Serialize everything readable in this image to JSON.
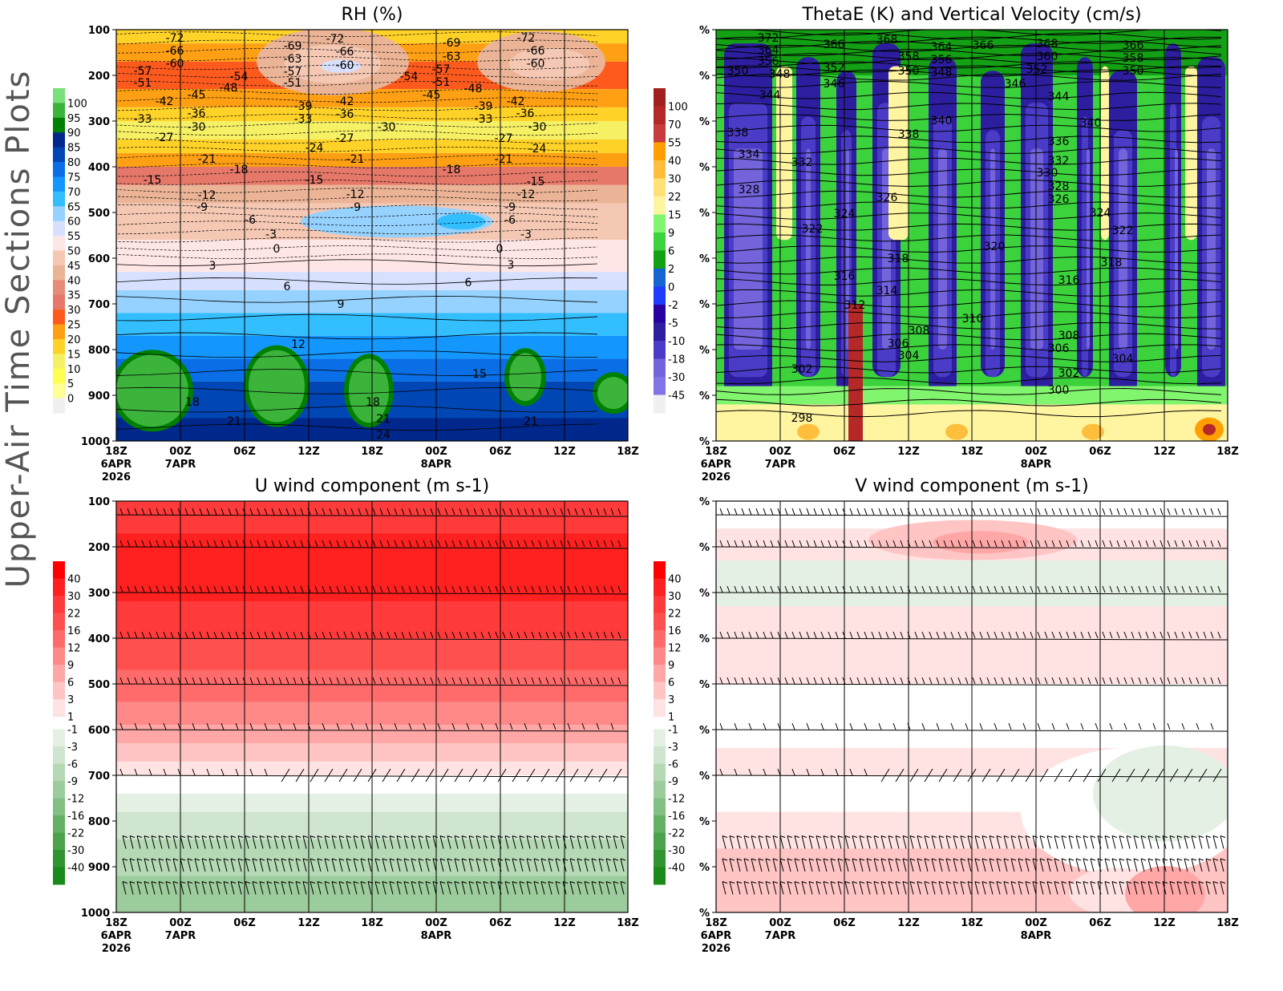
{
  "figure_title": "Upper-Air Time Sections Plots",
  "chart_data": [
    {
      "type": "heatmap",
      "title": "RH (%)",
      "y_ticks": [
        "100",
        "200",
        "300",
        "400",
        "500",
        "600",
        "700",
        "800",
        "900",
        "1000"
      ],
      "x_ticks": [
        "18Z",
        "00Z",
        "06Z",
        "12Z",
        "18Z",
        "00Z",
        "06Z",
        "12Z",
        "18Z"
      ],
      "x_date_labels": {
        "d0": "6APR",
        "d1": "7APR",
        "d2": "8APR",
        "year": "2026"
      },
      "colorbar_labels": [
        "100",
        "95",
        "90",
        "85",
        "80",
        "75",
        "70",
        "65",
        "60",
        "55",
        "50",
        "45",
        "40",
        "35",
        "30",
        "25",
        "20",
        "15",
        "10",
        "5",
        "0"
      ],
      "colorbar_colors": [
        "#7ae07a",
        "#3cb43c",
        "#008000",
        "#00288c",
        "#0046b4",
        "#0a6ee6",
        "#1496ff",
        "#32beff",
        "#96d2ff",
        "#d7e1ff",
        "#ffe6e6",
        "#f5c8b4",
        "#ebb496",
        "#e68c78",
        "#e6786a",
        "#ff5a1e",
        "#ffa014",
        "#ffd228",
        "#f5f064",
        "#ffff50",
        "#ffff96",
        "#f0f0f0"
      ],
      "contour_labels": [
        "-72",
        "-66",
        "-60",
        "-57",
        "-51",
        "-54",
        "-48",
        "-45",
        "-42",
        "-36",
        "-33",
        "-30",
        "-27",
        "-21",
        "-18",
        "-15",
        "-12",
        "-9",
        "-6",
        "-3",
        "0",
        "3",
        "6",
        "9",
        "12",
        "15",
        "18",
        "21",
        "24",
        "-69",
        "-63",
        "-57",
        "-51",
        "-72",
        "-66",
        "-60",
        "-39",
        "-33",
        "-42",
        "-36",
        "-24",
        "-27",
        "-21",
        "-15",
        "-12",
        "-9",
        "-30",
        "-54",
        "-45",
        "-51",
        "-57",
        "-63",
        "-69",
        "-48",
        "-39",
        "-33",
        "-18",
        "-27",
        "-21",
        "-42",
        "-36",
        "-30",
        "-24",
        "-72",
        "-66",
        "-60",
        "-15",
        "-12",
        "-9",
        "-6",
        "-3",
        "0",
        "3",
        "6",
        "18",
        "21",
        "21"
      ]
    },
    {
      "type": "heatmap",
      "title": "ThetaE (K) and Vertical Velocity (cm/s)",
      "y_ticks": [
        "%",
        "%",
        "%",
        "%",
        "%",
        "%",
        "%",
        "%",
        "%",
        "%"
      ],
      "x_ticks": [
        "18Z",
        "00Z",
        "06Z",
        "12Z",
        "18Z",
        "00Z",
        "06Z",
        "12Z",
        "18Z"
      ],
      "x_date_labels": {
        "d0": "6APR",
        "d1": "7APR",
        "d2": "8APR",
        "year": "2026"
      },
      "colorbar_labels": [
        "100",
        "70",
        "55",
        "40",
        "30",
        "22",
        "15",
        "9",
        "6",
        "2",
        "0",
        "-2",
        "-5",
        "-10",
        "-18",
        "-30",
        "-45"
      ],
      "colorbar_colors": [
        "#a02020",
        "#b42828",
        "#c83c3c",
        "#ffa000",
        "#ffbe3c",
        "#ffe178",
        "#fff5a0",
        "#82f56e",
        "#3cd23c",
        "#14a014",
        "#1464d2",
        "#1e3cff",
        "#2800a0",
        "#2d1ea0",
        "#4b3cc8",
        "#7364dc",
        "#8273e6",
        "#f0f0f0"
      ],
      "contour_labels": [
        "372",
        "364",
        "356",
        "350",
        "348",
        "366",
        "352",
        "346",
        "368",
        "358",
        "350",
        "364",
        "356",
        "348",
        "366",
        "368",
        "360",
        "352",
        "346",
        "366",
        "358",
        "350",
        "344",
        "344",
        "340",
        "340",
        "338",
        "338",
        "336",
        "334",
        "332",
        "332",
        "330",
        "328",
        "328",
        "326",
        "326",
        "324",
        "324",
        "322",
        "322",
        "320",
        "318",
        "318",
        "316",
        "316",
        "314",
        "312",
        "310",
        "308",
        "308",
        "306",
        "306",
        "304",
        "304",
        "302",
        "302",
        "300",
        "298"
      ]
    },
    {
      "type": "heatmap",
      "title": "U wind component (m s-1)",
      "y_ticks": [
        "100",
        "200",
        "300",
        "400",
        "500",
        "600",
        "700",
        "800",
        "900",
        "1000"
      ],
      "x_ticks": [
        "18Z",
        "00Z",
        "06Z",
        "12Z",
        "18Z",
        "00Z",
        "06Z",
        "12Z",
        "18Z"
      ],
      "x_date_labels": {
        "d0": "6APR",
        "d1": "7APR",
        "d2": "8APR",
        "year": "2026"
      },
      "colorbar_labels_pos": [
        "40",
        "30",
        "22",
        "16",
        "12",
        "9",
        "6",
        "3",
        "1"
      ],
      "colorbar_labels_neg": [
        "-1",
        "-3",
        "-6",
        "-9",
        "-12",
        "-16",
        "-22",
        "-30",
        "-40"
      ],
      "colorbar_colors_pos": [
        "#ff0000",
        "#ff2020",
        "#ff3a3a",
        "#ff5050",
        "#ff6a6a",
        "#ff8888",
        "#ffa6a6",
        "#ffc4c4",
        "#ffe2e2"
      ],
      "colorbar_colors_neg": [
        "#e4f0e4",
        "#cfe5cf",
        "#b5d9b5",
        "#9ccc9c",
        "#82bf82",
        "#64b064",
        "#4aa24a",
        "#309430",
        "#1a8a1a"
      ]
    },
    {
      "type": "heatmap",
      "title": "V wind component (m s-1)",
      "y_ticks": [
        "%",
        "%",
        "%",
        "%",
        "%",
        "%",
        "%",
        "%",
        "%",
        "%"
      ],
      "x_ticks": [
        "18Z",
        "00Z",
        "06Z",
        "12Z",
        "18Z",
        "00Z",
        "06Z",
        "12Z",
        "18Z"
      ],
      "x_date_labels": {
        "d0": "6APR",
        "d1": "7APR",
        "d2": "8APR",
        "year": "2026"
      },
      "colorbar_labels_pos": [
        "40",
        "30",
        "22",
        "16",
        "12",
        "9",
        "6",
        "3",
        "1"
      ],
      "colorbar_labels_neg": [
        "-1",
        "-3",
        "-6",
        "-9",
        "-12",
        "-16",
        "-22",
        "-30",
        "-40"
      ],
      "colorbar_colors_pos": [
        "#ff0000",
        "#ff2020",
        "#ff3a3a",
        "#ff5050",
        "#ff6a6a",
        "#ff8888",
        "#ffa6a6",
        "#ffc4c4",
        "#ffe2e2"
      ],
      "colorbar_colors_neg": [
        "#e4f0e4",
        "#cfe5cf",
        "#b5d9b5",
        "#9ccc9c",
        "#82bf82",
        "#64b064",
        "#4aa24a",
        "#309430",
        "#1a8a1a"
      ]
    }
  ]
}
